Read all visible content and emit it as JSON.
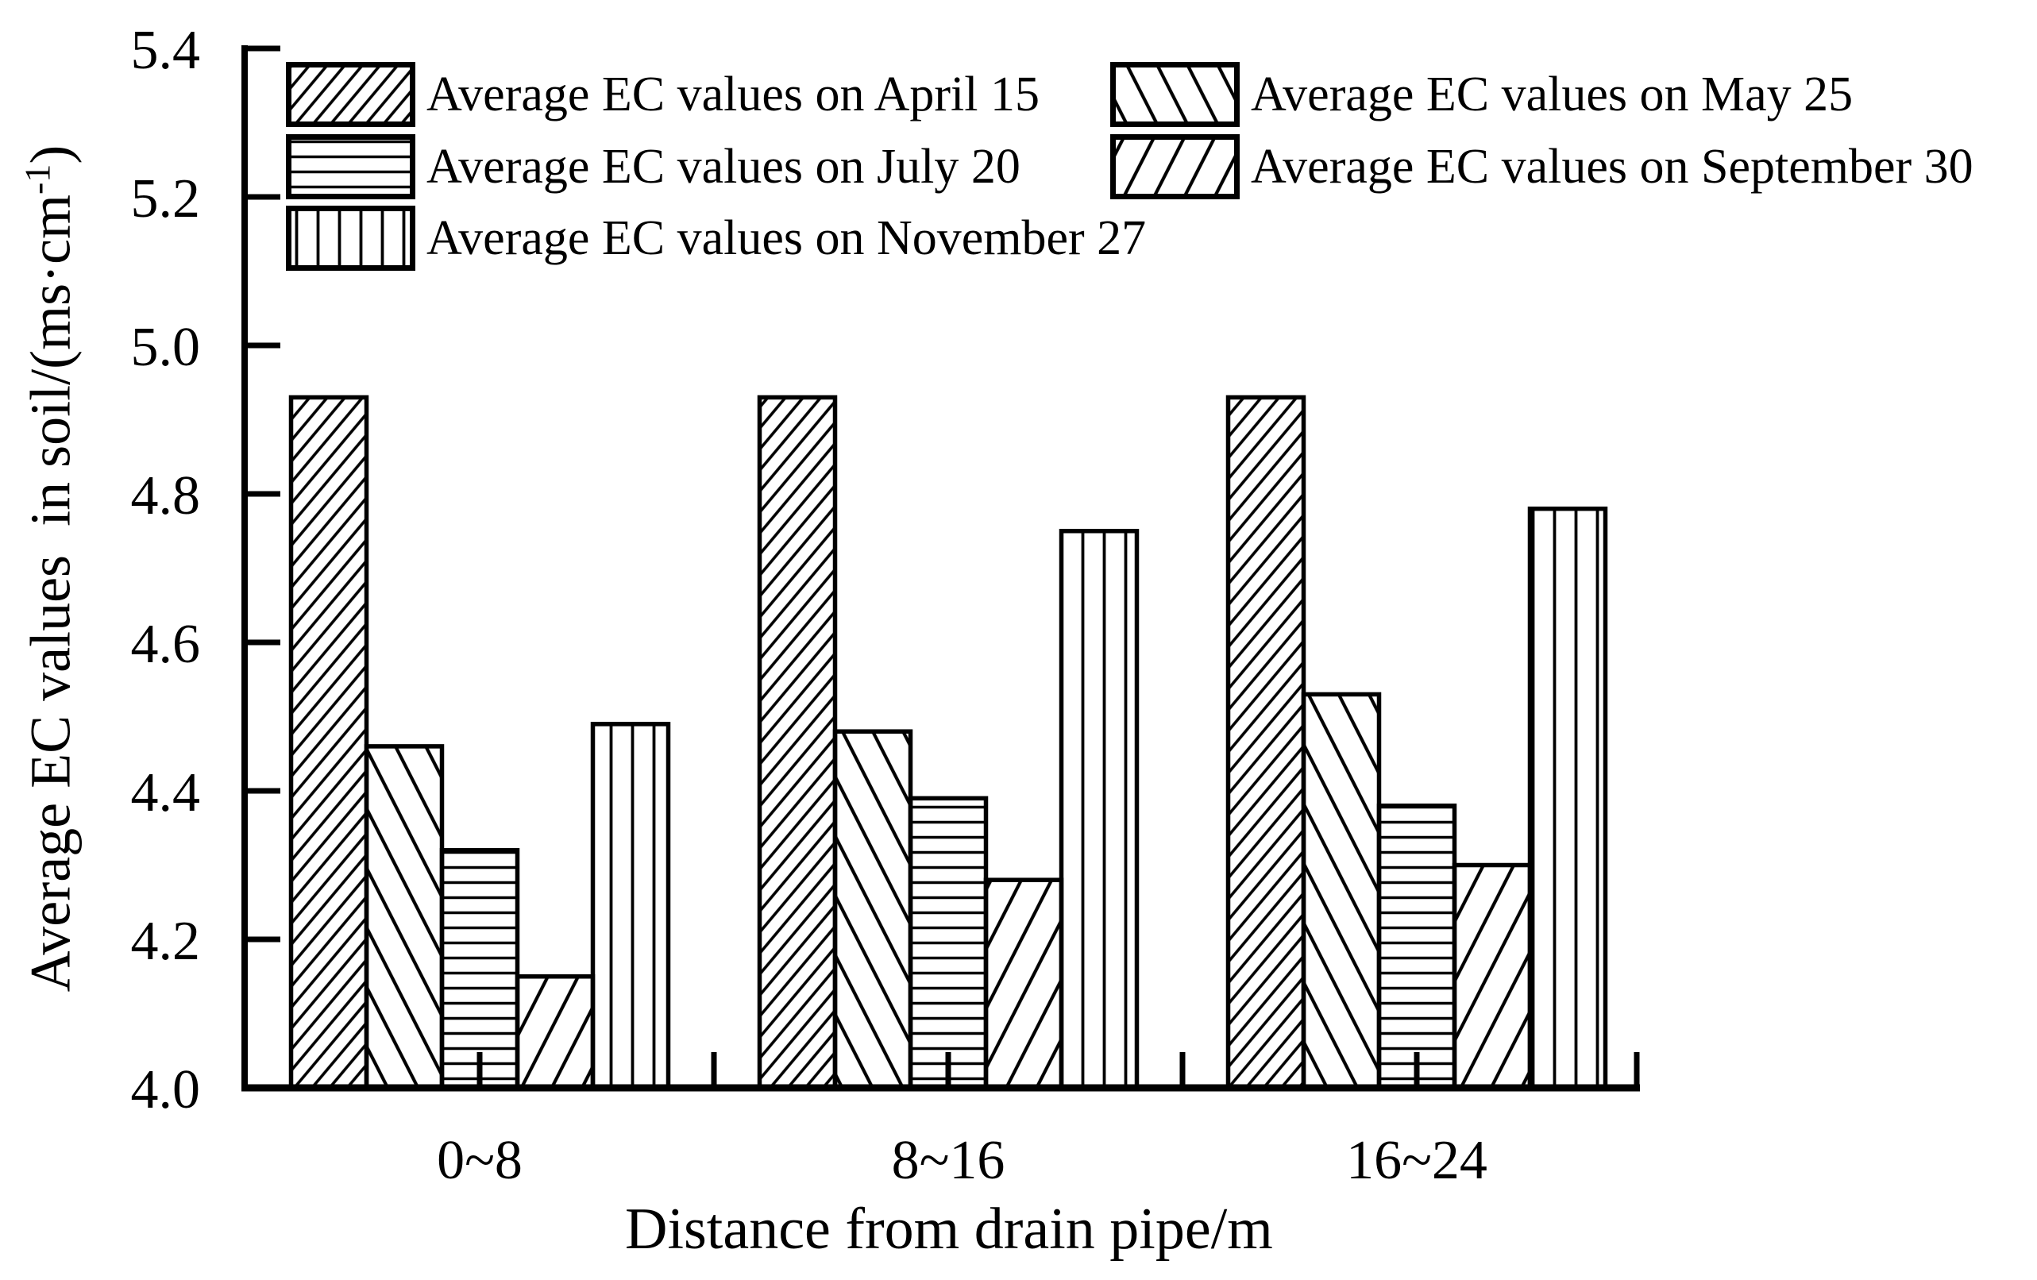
{
  "chart_data": {
    "type": "bar",
    "title": "",
    "xlabel": "Distance from drain pipe/m",
    "ylabel": "Average EC values in soil/(ms·cm⁻¹)",
    "categories": [
      "0~8",
      "8~16",
      "16~24"
    ],
    "series": [
      {
        "name": "Average EC values on April 15",
        "pattern": "diagonal-up-dense",
        "values": [
          4.93,
          4.93,
          4.93
        ]
      },
      {
        "name": "Average EC values on May 25",
        "pattern": "diagonal-down",
        "values": [
          4.46,
          4.48,
          4.53
        ]
      },
      {
        "name": "Average EC values on July 20",
        "pattern": "horizontal",
        "values": [
          4.32,
          4.39,
          4.38
        ]
      },
      {
        "name": "Average EC values on September 30",
        "pattern": "diagonal-up",
        "values": [
          4.15,
          4.28,
          4.3
        ]
      },
      {
        "name": "Average EC values on November 27",
        "pattern": "vertical",
        "values": [
          4.49,
          4.75,
          4.78
        ]
      }
    ],
    "ylim": [
      4.0,
      5.4
    ],
    "yticks": [
      4.0,
      4.2,
      4.4,
      4.6,
      4.8,
      5.0,
      5.2,
      5.4
    ],
    "ytick_labels": [
      "4.0",
      "4.2",
      "4.4",
      "4.6",
      "4.8",
      "5.0",
      "5.2",
      "5.4"
    ],
    "grid": false,
    "legend_position": "top-left, two columns, hatched swatches",
    "bar_color": "white with black hatch patterns",
    "axis_color": "#000000"
  },
  "y_axis": {
    "title_main": "Average EC values  in soil/(ms·cm",
    "title_sup": "-1",
    "title_close": ")"
  },
  "x_axis": {
    "title": "Distance from drain pipe/m",
    "categories": [
      "0~8",
      "8~16",
      "16~24"
    ]
  },
  "legend": {
    "items": [
      {
        "label": "Average EC values on April 15",
        "pattern": "diagonal-up-dense"
      },
      {
        "label": "Average EC values on May 25",
        "pattern": "diagonal-down"
      },
      {
        "label": "Average EC values on July 20",
        "pattern": "horizontal"
      },
      {
        "label": "Average EC values on September 30",
        "pattern": "diagonal-up"
      },
      {
        "label": "Average EC values on November 27",
        "pattern": "vertical"
      }
    ]
  }
}
